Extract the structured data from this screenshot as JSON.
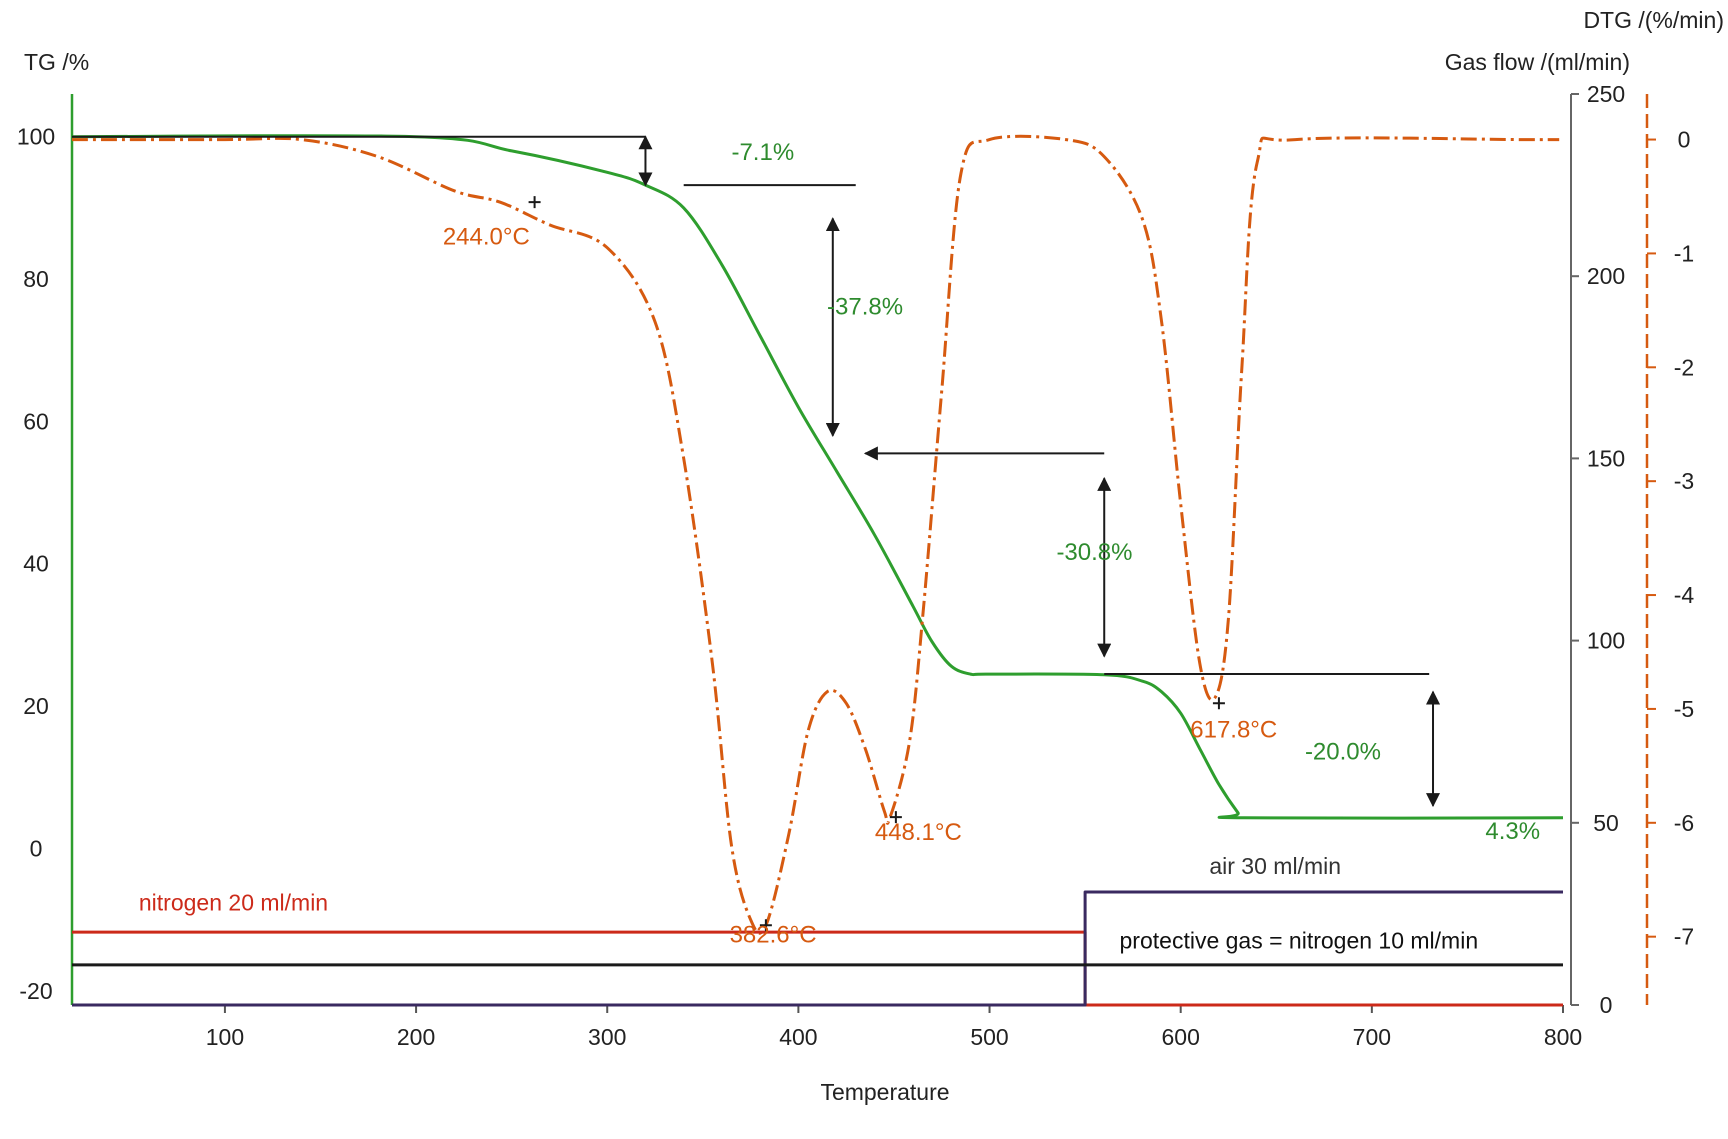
{
  "chart_data": {
    "type": "line",
    "title": "",
    "xlabel": "Temperature",
    "xlim": [
      20,
      800
    ],
    "x_ticks": [
      100,
      200,
      300,
      400,
      500,
      600,
      700,
      800
    ],
    "axes": {
      "tg": {
        "label": "TG /%",
        "ylim": [
          -22,
          106
        ],
        "ticks": [
          -20,
          0,
          20,
          40,
          60,
          80,
          100
        ],
        "color": "#2e9e2e"
      },
      "gas": {
        "label": "Gas flow /(ml/min)",
        "ylim": [
          0,
          250
        ],
        "ticks": [
          0,
          50,
          100,
          150,
          200,
          250
        ],
        "color": "#666666"
      },
      "dtg": {
        "label": "DTG /(%/min)",
        "ylim": [
          -7.6,
          0.4
        ],
        "ticks": [
          0,
          -1,
          -2,
          -3,
          -4,
          -5,
          -6,
          -7
        ],
        "color": "#d65a10"
      }
    },
    "series": [
      {
        "name": "TG",
        "axis": "tg",
        "color": "#2e9e2e",
        "style": "solid",
        "x": [
          20,
          200,
          250,
          300,
          320,
          340,
          360,
          380,
          400,
          420,
          440,
          460,
          470,
          480,
          490,
          500,
          560,
          580,
          590,
          600,
          610,
          620,
          630,
          633,
          800
        ],
        "y": [
          100,
          100,
          98,
          95,
          93.2,
          90,
          82,
          72,
          62,
          53,
          44,
          34,
          29,
          25.6,
          24.5,
          24.5,
          24.4,
          23.5,
          22,
          19,
          14,
          9,
          5,
          4.3,
          4.3
        ]
      },
      {
        "name": "DTG",
        "axis": "dtg",
        "color": "#d65a10",
        "style": "dashdot",
        "x": [
          20,
          100,
          140,
          180,
          220,
          244,
          270,
          300,
          325,
          340,
          355,
          365,
          375,
          383,
          395,
          405,
          415,
          425,
          435,
          445,
          448,
          458,
          465,
          475,
          485,
          500,
          540,
          560,
          580,
          590,
          600,
          610,
          618,
          625,
          632,
          640,
          660,
          780,
          798
        ],
        "y": [
          0,
          0,
          0,
          -0.15,
          -0.45,
          -0.55,
          -0.75,
          -0.95,
          -1.6,
          -2.8,
          -4.6,
          -6.2,
          -6.85,
          -6.9,
          -6.1,
          -5.2,
          -4.85,
          -4.95,
          -5.35,
          -5.9,
          -5.95,
          -5.3,
          -4.2,
          -2.2,
          -0.3,
          0,
          0,
          -0.15,
          -0.7,
          -1.6,
          -3.2,
          -4.6,
          -4.9,
          -4.2,
          -2.0,
          -0.2,
          0,
          0,
          0
        ]
      },
      {
        "name": "nitrogen 20 ml/min",
        "axis": "gas",
        "color": "#cc2a1a",
        "style": "solid",
        "x": [
          20,
          550,
          550,
          800
        ],
        "y": [
          20,
          20,
          0,
          0
        ]
      },
      {
        "name": "air 30 ml/min",
        "axis": "gas",
        "color": "#3a2a60",
        "style": "solid",
        "x": [
          20,
          550,
          550,
          800
        ],
        "y": [
          0,
          0,
          31,
          31
        ]
      },
      {
        "name": "protective gas = nitrogen 10 ml/min",
        "axis": "gas",
        "color": "#1a1a1a",
        "style": "solid",
        "x": [
          20,
          800
        ],
        "y": [
          11,
          11
        ]
      }
    ],
    "annotations": {
      "steps": [
        {
          "text": "-7.1%",
          "x_label": 365,
          "tg_label": 96.7,
          "arrow_x": 320,
          "from": 100,
          "to": 93.2,
          "ref_line": {
            "x1": 20,
            "x2": 320,
            "y": 100
          },
          "step_line": {
            "x1": 340,
            "x2": 430,
            "y": 93.2
          }
        },
        {
          "text": "-37.8%",
          "x_label": 415,
          "tg_label": 75,
          "arrow_x": 418,
          "from": 88.5,
          "to": 58,
          "ref_line": null,
          "step_line": {
            "x1": 435,
            "x2": 560,
            "y": 55.5,
            "arrow": true
          }
        },
        {
          "text": "-30.8%",
          "x_label": 535,
          "tg_label": 40.5,
          "arrow_x": 560,
          "from": 52,
          "to": 27,
          "ref_line": null,
          "step_line": {
            "x1": 560,
            "x2": 730,
            "y": 24.5
          }
        },
        {
          "text": "-20.0%",
          "x_label": 665,
          "tg_label": 12.5,
          "arrow_x": 732,
          "from": 22,
          "to": 6,
          "ref_line": null,
          "step_line": null
        }
      ],
      "residue": {
        "text": "4.3%",
        "x_label": 788,
        "tg_label": 1.3
      },
      "peaks": [
        {
          "text": "244.0°C",
          "x_marker": 262,
          "dtg_marker": -0.55,
          "x_label": 214,
          "dtg_label": -0.92
        },
        {
          "text": "382.6°C",
          "x_marker": 383,
          "dtg_marker": -6.9,
          "x_label": 364,
          "dtg_label": -7.05
        },
        {
          "text": "448.1°C",
          "x_marker": 451,
          "dtg_marker": -5.95,
          "x_label": 440,
          "dtg_label": -6.15
        },
        {
          "text": "617.8°C",
          "x_marker": 620,
          "dtg_marker": -4.95,
          "x_label": 605,
          "dtg_label": -5.25
        }
      ],
      "gas_labels": [
        {
          "text": "nitrogen 20 ml/min",
          "x": 55,
          "gas": 26,
          "color": "#cc2a1a"
        },
        {
          "text": "air 30 ml/min",
          "x": 615,
          "gas": 36,
          "color": "#333333"
        },
        {
          "text": "protective gas = nitrogen 10 ml/min",
          "x": 568,
          "gas": 15.5,
          "color": "#111111"
        }
      ]
    }
  }
}
